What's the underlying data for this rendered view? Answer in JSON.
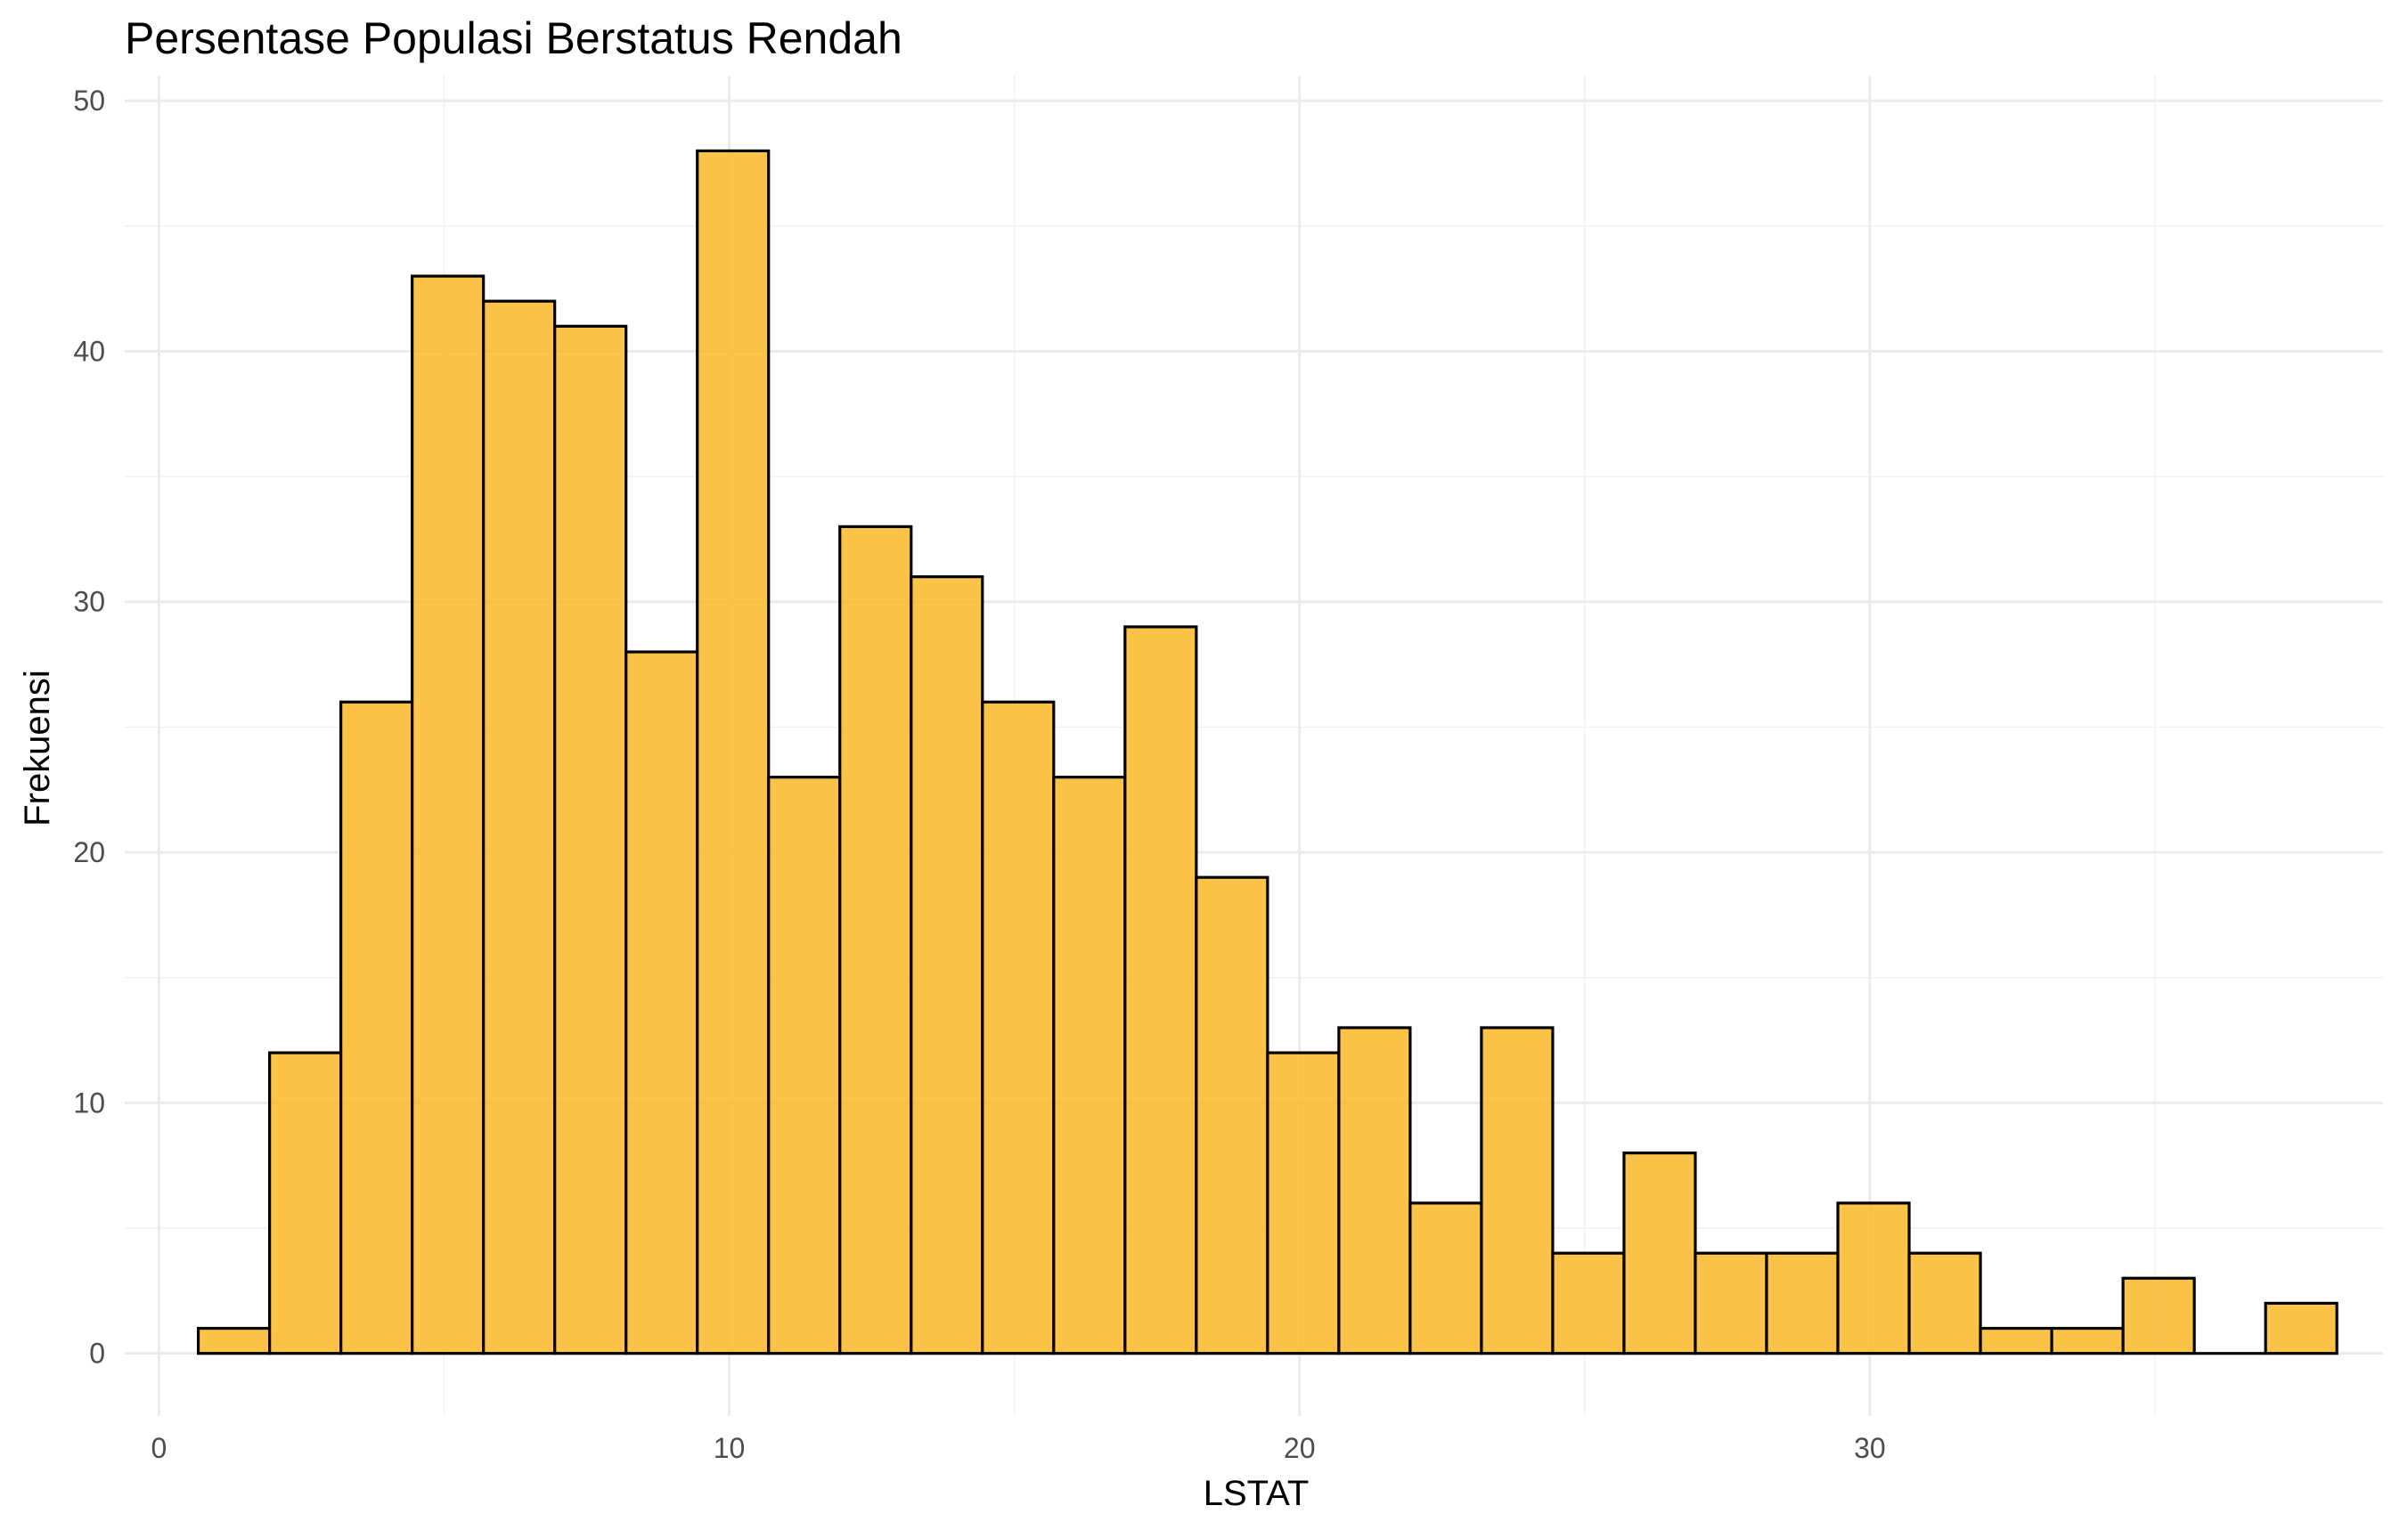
{
  "chart_data": {
    "type": "bar",
    "title": "Persentase Populasi Berstatus Rendah",
    "xlabel": "LSTAT",
    "ylabel": "Frekuensi",
    "xlim": [
      -0.6,
      39.0
    ],
    "ylim": [
      -2.5,
      51.0
    ],
    "x_ticks": [
      0,
      10,
      20,
      30
    ],
    "y_ticks": [
      0,
      10,
      20,
      30,
      40,
      50
    ],
    "grid": true,
    "bin_width": 1.25,
    "bins": [
      {
        "x0": 0.69,
        "x1": 1.94,
        "count": 1
      },
      {
        "x0": 1.94,
        "x1": 3.19,
        "count": 12
      },
      {
        "x0": 3.19,
        "x1": 4.44,
        "count": 26
      },
      {
        "x0": 4.44,
        "x1": 5.69,
        "count": 43
      },
      {
        "x0": 5.69,
        "x1": 6.94,
        "count": 42
      },
      {
        "x0": 6.94,
        "x1": 8.19,
        "count": 41
      },
      {
        "x0": 8.19,
        "x1": 9.44,
        "count": 28
      },
      {
        "x0": 9.44,
        "x1": 10.69,
        "count": 48
      },
      {
        "x0": 10.69,
        "x1": 11.94,
        "count": 23
      },
      {
        "x0": 11.94,
        "x1": 13.19,
        "count": 33
      },
      {
        "x0": 13.19,
        "x1": 14.44,
        "count": 31
      },
      {
        "x0": 14.44,
        "x1": 15.69,
        "count": 26
      },
      {
        "x0": 15.69,
        "x1": 16.94,
        "count": 23
      },
      {
        "x0": 16.94,
        "x1": 18.19,
        "count": 29
      },
      {
        "x0": 18.19,
        "x1": 19.44,
        "count": 19
      },
      {
        "x0": 19.44,
        "x1": 20.69,
        "count": 12
      },
      {
        "x0": 20.69,
        "x1": 21.94,
        "count": 13
      },
      {
        "x0": 21.94,
        "x1": 23.19,
        "count": 6
      },
      {
        "x0": 23.19,
        "x1": 24.44,
        "count": 13
      },
      {
        "x0": 24.44,
        "x1": 25.69,
        "count": 4
      },
      {
        "x0": 25.69,
        "x1": 26.94,
        "count": 8
      },
      {
        "x0": 26.94,
        "x1": 28.19,
        "count": 4
      },
      {
        "x0": 28.19,
        "x1": 29.44,
        "count": 4
      },
      {
        "x0": 29.44,
        "x1": 30.69,
        "count": 6
      },
      {
        "x0": 30.69,
        "x1": 31.94,
        "count": 4
      },
      {
        "x0": 31.94,
        "x1": 33.19,
        "count": 1
      },
      {
        "x0": 33.19,
        "x1": 34.44,
        "count": 1
      },
      {
        "x0": 34.44,
        "x1": 35.69,
        "count": 3
      },
      {
        "x0": 35.69,
        "x1": 36.94,
        "count": 0
      },
      {
        "x0": 36.94,
        "x1": 38.19,
        "count": 2
      }
    ]
  },
  "colors": {
    "bar_fill": "#fbb829",
    "bar_outline": "#000000",
    "grid": "#ebebeb",
    "tick_text": "#4d4d4d",
    "background": "#ffffff"
  }
}
